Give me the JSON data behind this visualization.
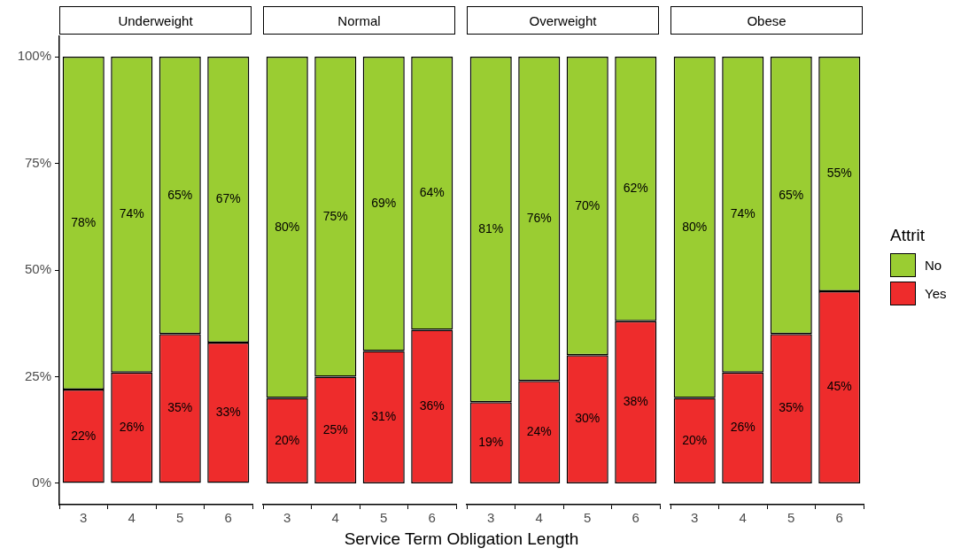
{
  "chart_data": [
    {
      "type": "bar",
      "stacked": true,
      "title": "Underweight",
      "xlabel": "Service Term Obligation Length",
      "categories": [
        "3",
        "4",
        "5",
        "6"
      ],
      "ylim": [
        -5,
        105
      ],
      "yticks": [
        {
          "value": 0,
          "label": "0%"
        },
        {
          "value": 25,
          "label": "25%"
        },
        {
          "value": 50,
          "label": "50%"
        },
        {
          "value": 75,
          "label": "75%"
        },
        {
          "value": 100,
          "label": "100%"
        }
      ],
      "legend": false,
      "series": [
        {
          "color": "#ee2c2c",
          "values": [
            22,
            26,
            35,
            33
          ],
          "value_labels": [
            "22%",
            "26%",
            "35%",
            "33%"
          ]
        },
        {
          "color": "#9acd32",
          "values": [
            78,
            74,
            65,
            67
          ],
          "value_labels": [
            "78%",
            "74%",
            "65%",
            "67%"
          ]
        }
      ]
    },
    {
      "type": "bar",
      "stacked": true,
      "title": "Normal",
      "categories": [
        "3",
        "4",
        "5",
        "6"
      ],
      "tick_labels": "x",
      "legend": false,
      "series": [
        {
          "color": "#ee2c2c",
          "values": [
            20,
            25,
            31,
            36
          ],
          "value_labels": [
            "20%",
            "25%",
            "31%",
            "36%"
          ]
        },
        {
          "color": "#9acd32",
          "values": [
            80,
            75,
            69,
            64
          ],
          "value_labels": [
            "80%",
            "75%",
            "69%",
            "64%"
          ]
        }
      ]
    },
    {
      "type": "bar",
      "stacked": true,
      "title": "Overweight",
      "categories": [
        "3",
        "4",
        "5",
        "6"
      ],
      "tick_labels": "x",
      "legend": false,
      "series": [
        {
          "color": "#ee2c2c",
          "values": [
            19,
            24,
            30,
            38
          ],
          "value_labels": [
            "19%",
            "24%",
            "30%",
            "38%"
          ]
        },
        {
          "color": "#9acd32",
          "values": [
            81,
            76,
            70,
            62
          ],
          "value_labels": [
            "81%",
            "76%",
            "70%",
            "62%"
          ]
        }
      ]
    },
    {
      "type": "bar",
      "stacked": true,
      "title": "Obese",
      "categories": [
        "3",
        "4",
        "5",
        "6"
      ],
      "tick_labels": "x",
      "legend": "right",
      "legend_title": "Attrit",
      "series": [
        {
          "name": "Yes",
          "color": "#ee2c2c",
          "values": [
            20,
            26,
            35,
            45
          ],
          "value_labels": [
            "20%",
            "26%",
            "35%",
            "45%"
          ]
        },
        {
          "name": "No",
          "color": "#9acd32",
          "values": [
            80,
            74,
            65,
            55
          ],
          "value_labels": [
            "80%",
            "74%",
            "65%",
            "55%"
          ]
        }
      ]
    }
  ]
}
